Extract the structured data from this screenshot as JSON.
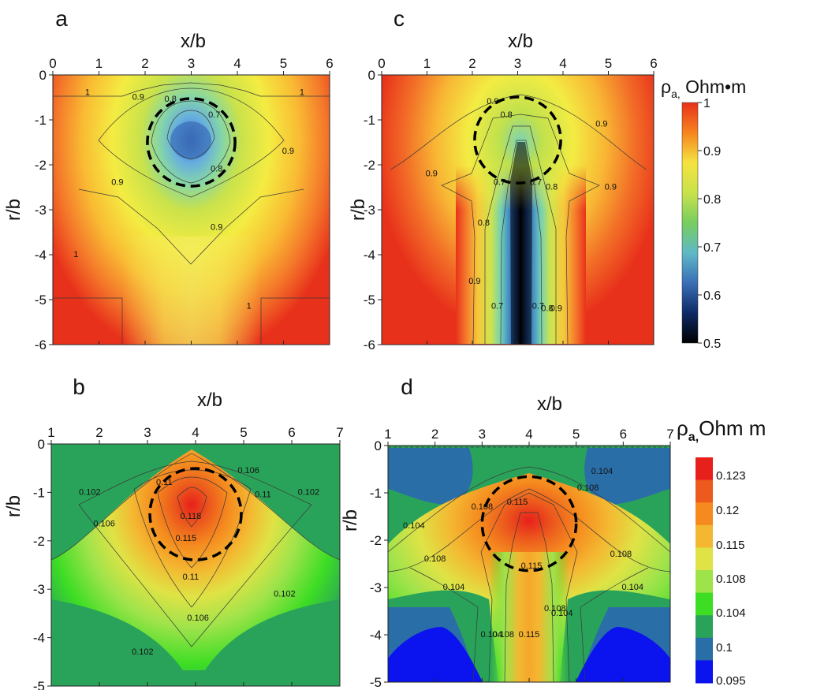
{
  "panels": [
    {
      "letter": "a",
      "xlabel": "x/b",
      "ylabel": "r/b",
      "xticks": [
        0,
        1,
        2,
        3,
        4,
        5,
        6
      ],
      "yticks": [
        0,
        -1,
        -2,
        -3,
        -4,
        -5,
        -6
      ],
      "xlim": [
        0,
        6
      ],
      "ylim": [
        -6,
        0
      ],
      "colorbar": "top",
      "circle": {
        "cx": 3,
        "cy": -1.5,
        "r": 0.95
      },
      "contour_labels": [
        {
          "text": "1",
          "x": 0.75,
          "y": -0.45
        },
        {
          "text": "1",
          "x": 5.4,
          "y": -0.45
        },
        {
          "text": "0.9",
          "x": 1.85,
          "y": -0.55
        },
        {
          "text": "0.8",
          "x": 2.55,
          "y": -0.6
        },
        {
          "text": "0.7",
          "x": 3.5,
          "y": -0.95
        },
        {
          "text": "0.9",
          "x": 5.1,
          "y": -1.75
        },
        {
          "text": "0.8",
          "x": 3.55,
          "y": -2.15
        },
        {
          "text": "0.9",
          "x": 1.4,
          "y": -2.45
        },
        {
          "text": "0.9",
          "x": 3.55,
          "y": -3.45
        },
        {
          "text": "1",
          "x": 0.5,
          "y": -4.05
        },
        {
          "text": "1",
          "x": 4.25,
          "y": -5.2
        }
      ]
    },
    {
      "letter": "b",
      "xlabel": "x/b",
      "ylabel": "r/b",
      "xticks": [
        1,
        2,
        3,
        4,
        5,
        6,
        7
      ],
      "yticks": [
        0,
        -1,
        -2,
        -3,
        -4,
        -5
      ],
      "xlim": [
        1,
        7
      ],
      "ylim": [
        -5,
        0
      ],
      "colorbar": "bottom",
      "circle": {
        "cx": 4,
        "cy": -1.45,
        "r": 0.95
      },
      "contour_labels": [
        {
          "text": "0.106",
          "x": 5.1,
          "y": -0.6
        },
        {
          "text": "0.11",
          "x": 3.35,
          "y": -0.85
        },
        {
          "text": "0.102",
          "x": 1.8,
          "y": -1.05
        },
        {
          "text": "0.11",
          "x": 5.4,
          "y": -1.1
        },
        {
          "text": "0.102",
          "x": 6.35,
          "y": -1.05
        },
        {
          "text": "0.118",
          "x": 3.9,
          "y": -1.55
        },
        {
          "text": "0.106",
          "x": 2.1,
          "y": -1.7
        },
        {
          "text": "0.115",
          "x": 3.8,
          "y": -2.0
        },
        {
          "text": "0.11",
          "x": 3.9,
          "y": -2.8
        },
        {
          "text": "0.102",
          "x": 5.85,
          "y": -3.15
        },
        {
          "text": "0.106",
          "x": 4.05,
          "y": -3.65
        },
        {
          "text": "0.102",
          "x": 2.9,
          "y": -4.35
        }
      ]
    },
    {
      "letter": "c",
      "xlabel": "x/b",
      "ylabel": "r/b",
      "xticks": [
        0,
        1,
        2,
        3,
        4,
        5,
        6
      ],
      "yticks": [
        0,
        -1,
        -2,
        -3,
        -4,
        -5,
        -6
      ],
      "xlim": [
        0,
        6
      ],
      "ylim": [
        -6,
        0
      ],
      "colorbar": "top",
      "circle": {
        "cx": 3,
        "cy": -1.45,
        "r": 0.95
      },
      "contour_labels": [
        {
          "text": "0.9",
          "x": 2.45,
          "y": -0.65
        },
        {
          "text": "0.8",
          "x": 2.75,
          "y": -0.95
        },
        {
          "text": "0.9",
          "x": 4.85,
          "y": -1.15
        },
        {
          "text": "0.9",
          "x": 1.1,
          "y": -2.25
        },
        {
          "text": "0.7",
          "x": 2.6,
          "y": -2.45
        },
        {
          "text": "0.7",
          "x": 3.4,
          "y": -2.45
        },
        {
          "text": "0.8",
          "x": 3.75,
          "y": -2.55
        },
        {
          "text": "0.9",
          "x": 5.05,
          "y": -2.55
        },
        {
          "text": "0.8",
          "x": 2.25,
          "y": -3.35
        },
        {
          "text": "0.9",
          "x": 2.05,
          "y": -4.65
        },
        {
          "text": "0.7",
          "x": 2.55,
          "y": -5.2
        },
        {
          "text": "0.7",
          "x": 3.45,
          "y": -5.2
        },
        {
          "text": "0.8",
          "x": 3.65,
          "y": -5.25
        },
        {
          "text": "0.9",
          "x": 3.85,
          "y": -5.25
        }
      ]
    },
    {
      "letter": "d",
      "xlabel": "x/b",
      "ylabel": "r/b",
      "xticks": [
        1,
        2,
        3,
        4,
        5,
        6,
        7
      ],
      "yticks": [
        0,
        -1,
        -2,
        -3,
        -4,
        -5
      ],
      "xlim": [
        1,
        7
      ],
      "ylim": [
        -5,
        0
      ],
      "colorbar": "bottom",
      "circle": {
        "cx": 4,
        "cy": -1.65,
        "r": 1.0
      },
      "contour_labels": [
        {
          "text": "0.104",
          "x": 5.55,
          "y": -0.6
        },
        {
          "text": "0.108",
          "x": 5.25,
          "y": -0.95
        },
        {
          "text": "0.115",
          "x": 3.75,
          "y": -1.25
        },
        {
          "text": "0.108",
          "x": 3.0,
          "y": -1.35
        },
        {
          "text": "0.104",
          "x": 1.55,
          "y": -1.75
        },
        {
          "text": "0.108",
          "x": 2.0,
          "y": -2.45
        },
        {
          "text": "0.108",
          "x": 5.95,
          "y": -2.35
        },
        {
          "text": "0.115",
          "x": 4.05,
          "y": -2.6
        },
        {
          "text": "0.104",
          "x": 2.4,
          "y": -3.05
        },
        {
          "text": "0.104",
          "x": 6.2,
          "y": -3.05
        },
        {
          "text": "0.108",
          "x": 4.55,
          "y": -3.5
        },
        {
          "text": "0.104",
          "x": 4.7,
          "y": -3.6
        },
        {
          "text": "0.104",
          "x": 3.2,
          "y": -4.05
        },
        {
          "text": "0.108",
          "x": 3.45,
          "y": -4.05
        },
        {
          "text": "0.115",
          "x": 4.0,
          "y": -4.05
        }
      ]
    }
  ],
  "colorbar_top": {
    "label": "ρa, Ohm•m",
    "ticks": [
      "1",
      "0.9",
      "0.8",
      "0.7",
      "0.6",
      "0.5"
    ],
    "stops": [
      "#e8311b",
      "#f6841f",
      "#f5e341",
      "#c9e24b",
      "#78cd5f",
      "#5fb9c6",
      "#3a6fb6",
      "#0e2a66",
      "#000000"
    ]
  },
  "colorbar_bottom": {
    "label": "ρa,Ohm m",
    "ticks": [
      "0.123",
      "0.12",
      "0.115",
      "0.108",
      "0.104",
      "0.1",
      "0.095"
    ],
    "colors": [
      "#e8201b",
      "#ec5a1d",
      "#f58a1e",
      "#f4b731",
      "#dfe345",
      "#9fe34b",
      "#3ddd24",
      "#2aa35a",
      "#2a6ea8",
      "#0b13ef"
    ]
  },
  "chart_data": [
    {
      "type": "heatmap",
      "title": "a",
      "xlabel": "x/b",
      "ylabel": "r/b",
      "xlim": [
        0,
        6
      ],
      "ylim": [
        -6,
        0
      ],
      "colorbar_label": "ρa, Ohm•m",
      "colorbar_range": [
        0.5,
        1
      ],
      "contour_levels": [
        0.7,
        0.8,
        0.9,
        1
      ],
      "feature": {
        "type": "minimum",
        "x": 3,
        "y": -1.5,
        "value": 0.65
      }
    },
    {
      "type": "heatmap",
      "title": "b",
      "xlabel": "x/b",
      "ylabel": "r/b",
      "xlim": [
        1,
        7
      ],
      "ylim": [
        -5,
        0
      ],
      "colorbar_label": "ρa,Ohm m",
      "colorbar_range": [
        0.095,
        0.123
      ],
      "contour_levels": [
        0.102,
        0.106,
        0.11,
        0.115,
        0.118
      ],
      "feature": {
        "type": "maximum",
        "x": 4,
        "y": -1.3,
        "value": 0.121
      }
    },
    {
      "type": "heatmap",
      "title": "c",
      "xlabel": "x/b",
      "ylabel": "r/b",
      "xlim": [
        0,
        6
      ],
      "ylim": [
        -6,
        0
      ],
      "colorbar_label": "ρa, Ohm•m",
      "colorbar_range": [
        0.5,
        1
      ],
      "contour_levels": [
        0.7,
        0.8,
        0.9
      ],
      "feature": {
        "type": "minimum",
        "x": 3,
        "y": -4,
        "value": 0.5
      }
    },
    {
      "type": "heatmap",
      "title": "d",
      "xlabel": "x/b",
      "ylabel": "r/b",
      "xlim": [
        1,
        7
      ],
      "ylim": [
        -5,
        0
      ],
      "colorbar_label": "ρa,Ohm m",
      "colorbar_range": [
        0.095,
        0.123
      ],
      "contour_levels": [
        0.1,
        0.104,
        0.108,
        0.115
      ],
      "feature": {
        "type": "maximum",
        "x": 4,
        "y": -1.6,
        "value": 0.121
      }
    }
  ]
}
